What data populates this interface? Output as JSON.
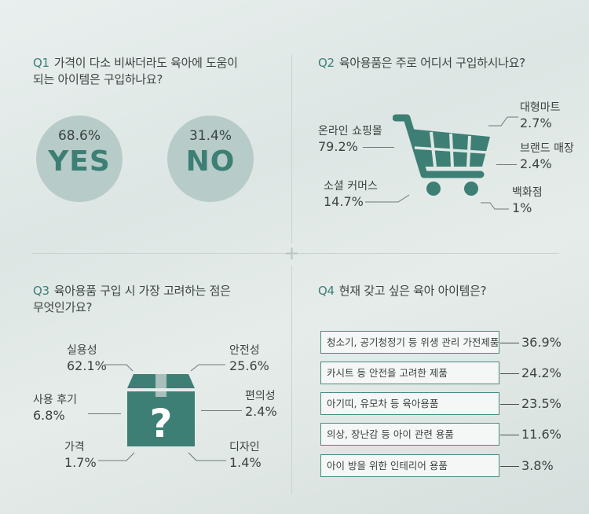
{
  "colors": {
    "accent": "#3d7f75",
    "circle": "#b7ccc8",
    "box_border": "#4a8b81"
  },
  "q1": {
    "num": "Q1",
    "line1": "가격이 다소 비싸더라도 육아에 도움이",
    "line2": "되는 아이템은 구입하나요?",
    "yes_pct": "68.6%",
    "yes_label": "YES",
    "no_pct": "31.4%",
    "no_label": "NO"
  },
  "q2": {
    "num": "Q2",
    "question": "육아용품은 주로 어디서 구입하시나요?",
    "icon": "shopping-cart-icon",
    "items": [
      {
        "label": "온라인 쇼핑몰",
        "value": "79.2%"
      },
      {
        "label": "소셜 커머스",
        "value": "14.7%"
      },
      {
        "label": "대형마트",
        "value": "2.7%"
      },
      {
        "label": "브랜드 매장",
        "value": "2.4%"
      },
      {
        "label": "백화점",
        "value": "1%"
      }
    ]
  },
  "q3": {
    "num": "Q3",
    "line1": "육아용품 구입 시 가장 고려하는 점은",
    "line2": "무엇인가요?",
    "icon": "question-box-icon",
    "items": [
      {
        "label": "실용성",
        "value": "62.1%"
      },
      {
        "label": "사용 후기",
        "value": "6.8%"
      },
      {
        "label": "가격",
        "value": "1.7%"
      },
      {
        "label": "안전성",
        "value": "25.6%"
      },
      {
        "label": "편의성",
        "value": "2.4%"
      },
      {
        "label": "디자인",
        "value": "1.4%"
      }
    ]
  },
  "q4": {
    "num": "Q4",
    "question": "현재 갖고 싶은 육아 아이템은?",
    "items": [
      {
        "label": "청소기, 공기청정기 등 위생 관리 가전제품",
        "value": "36.9%"
      },
      {
        "label": "카시트 등 안전을 고려한 제품",
        "value": "24.2%"
      },
      {
        "label": "아기띠, 유모차 등 육아용품",
        "value": "23.5%"
      },
      {
        "label": "의상, 장난감 등 아이 관련 용품",
        "value": "11.6%"
      },
      {
        "label": "아이 방을 위한 인테리어 용품",
        "value": "3.8%"
      }
    ]
  },
  "chart_data": [
    {
      "type": "pie",
      "title": "가격이 다소 비싸더라도 육아에 도움이 되는 아이템은 구입하나요?",
      "categories": [
        "YES",
        "NO"
      ],
      "values": [
        68.6,
        31.4
      ]
    },
    {
      "type": "pie",
      "title": "육아용품은 주로 어디서 구입하시나요?",
      "categories": [
        "온라인 쇼핑몰",
        "소셜 커머스",
        "대형마트",
        "브랜드 매장",
        "백화점"
      ],
      "values": [
        79.2,
        14.7,
        2.7,
        2.4,
        1
      ]
    },
    {
      "type": "pie",
      "title": "육아용품 구입 시 가장 고려하는 점은 무엇인가요?",
      "categories": [
        "실용성",
        "안전성",
        "사용 후기",
        "편의성",
        "가격",
        "디자인"
      ],
      "values": [
        62.1,
        25.6,
        6.8,
        2.4,
        1.7,
        1.4
      ]
    },
    {
      "type": "bar",
      "title": "현재 갖고 싶은 육아 아이템은?",
      "categories": [
        "청소기, 공기청정기 등 위생 관리 가전제품",
        "카시트 등 안전을 고려한 제품",
        "아기띠, 유모차 등 육아용품",
        "의상, 장난감 등 아이 관련 용품",
        "아이 방을 위한 인테리어 용품"
      ],
      "values": [
        36.9,
        24.2,
        23.5,
        11.6,
        3.8
      ]
    }
  ]
}
